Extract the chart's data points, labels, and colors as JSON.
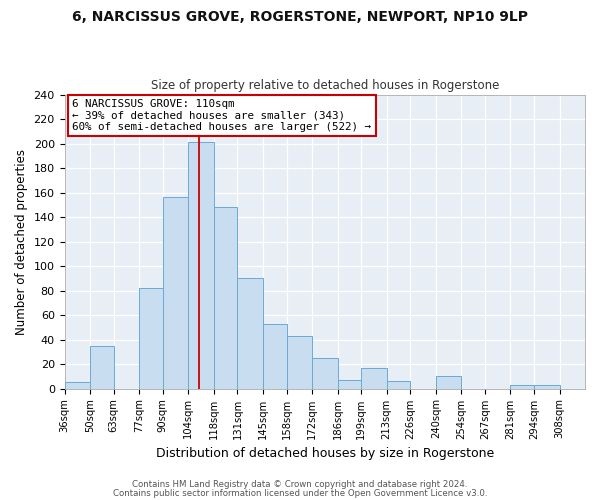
{
  "title": "6, NARCISSUS GROVE, ROGERSTONE, NEWPORT, NP10 9LP",
  "subtitle": "Size of property relative to detached houses in Rogerstone",
  "xlabel": "Distribution of detached houses by size in Rogerstone",
  "ylabel": "Number of detached properties",
  "bin_labels": [
    "36sqm",
    "50sqm",
    "63sqm",
    "77sqm",
    "90sqm",
    "104sqm",
    "118sqm",
    "131sqm",
    "145sqm",
    "158sqm",
    "172sqm",
    "186sqm",
    "199sqm",
    "213sqm",
    "226sqm",
    "240sqm",
    "254sqm",
    "267sqm",
    "281sqm",
    "294sqm",
    "308sqm"
  ],
  "bin_edges": [
    36,
    50,
    63,
    77,
    90,
    104,
    118,
    131,
    145,
    158,
    172,
    186,
    199,
    213,
    226,
    240,
    254,
    267,
    281,
    294,
    308
  ],
  "bar_heights": [
    5,
    35,
    0,
    82,
    156,
    201,
    148,
    90,
    53,
    43,
    25,
    7,
    17,
    6,
    0,
    10,
    0,
    0,
    3,
    3
  ],
  "bar_color": "#c9ddf0",
  "bar_edge_color": "#6aaad4",
  "property_line_x": 110,
  "property_line_color": "#cc0000",
  "annotation_title": "6 NARCISSUS GROVE: 110sqm",
  "annotation_line1": "← 39% of detached houses are smaller (343)",
  "annotation_line2": "60% of semi-detached houses are larger (522) →",
  "annotation_box_color": "#cc0000",
  "ylim": [
    0,
    240
  ],
  "yticks": [
    0,
    20,
    40,
    60,
    80,
    100,
    120,
    140,
    160,
    180,
    200,
    220,
    240
  ],
  "footer1": "Contains HM Land Registry data © Crown copyright and database right 2024.",
  "footer2": "Contains public sector information licensed under the Open Government Licence v3.0.",
  "fig_bg_color": "#ffffff",
  "plot_bg_color": "#e8eef5"
}
